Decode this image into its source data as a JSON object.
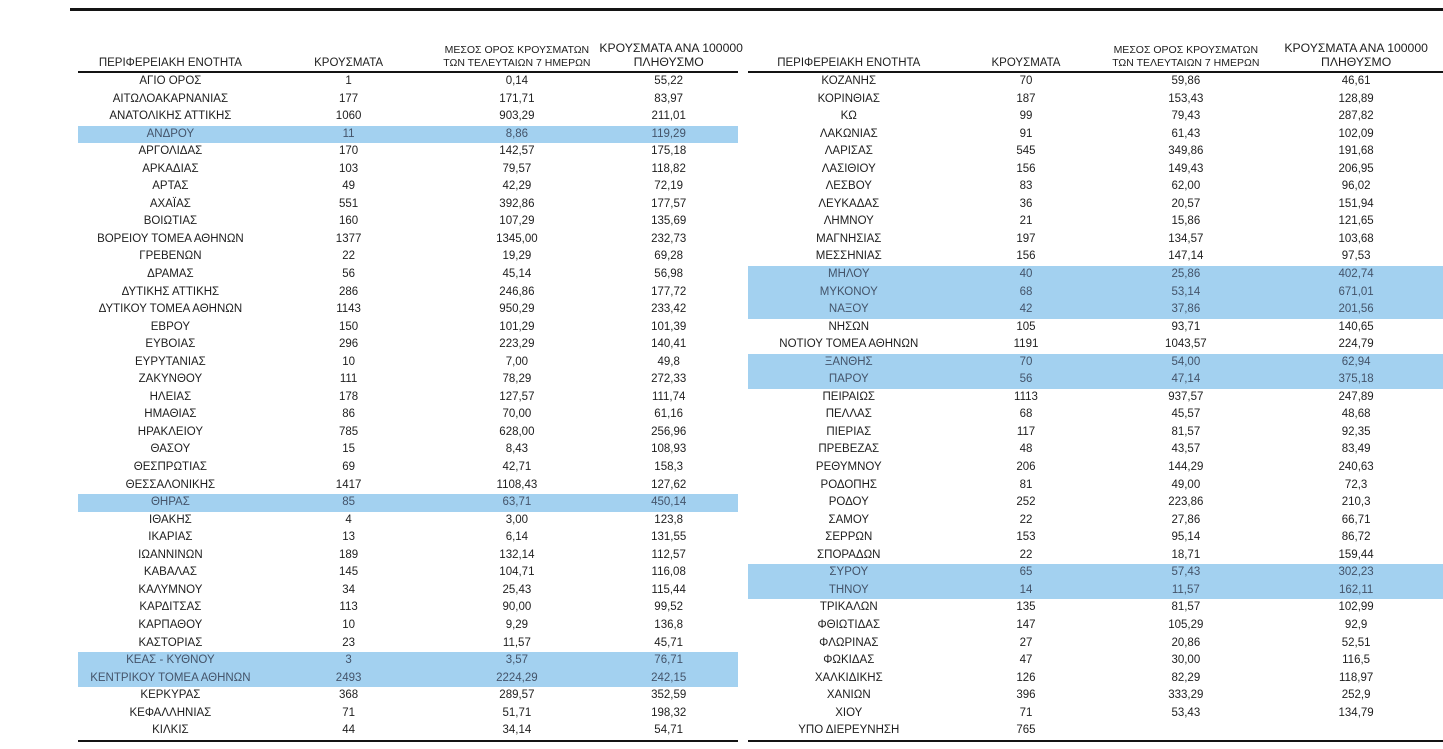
{
  "colors": {
    "highlight": "#a3d1f0",
    "highlight_text": "#44546a",
    "text": "#1e1e1e",
    "rule": "#141414"
  },
  "columns": {
    "region": "ΠΕΡΙΦΕΡΕΙΑΚΗ ΕΝΟΤΗΤΑ",
    "cases": "ΚΡΟΥΣΜΑΤΑ",
    "avg7_line1": "ΜΕΣΟΣ ΟΡΟΣ ΚΡΟΥΣΜΑΤΩΝ",
    "avg7_line2": "ΤΩΝ ΤΕΛΕΥΤΑΙΩΝ 7 ΗΜΕΡΩΝ",
    "per100k_line1": "ΚΡΟΥΣΜΑΤΑ ΑΝΑ 100000",
    "per100k_line2": "ΠΛΗΘΥΣΜΟ"
  },
  "tables": {
    "left": {
      "rows": [
        {
          "region": "ΑΓΙΟ ΟΡΟΣ",
          "cases": "1",
          "avg7": "0,14",
          "per100k": "55,22",
          "highlight": false
        },
        {
          "region": "ΑΙΤΩΛΟΑΚΑΡΝΑΝΙΑΣ",
          "cases": "177",
          "avg7": "171,71",
          "per100k": "83,97",
          "highlight": false
        },
        {
          "region": "ΑΝΑΤΟΛΙΚΗΣ ΑΤΤΙΚΗΣ",
          "cases": "1060",
          "avg7": "903,29",
          "per100k": "211,01",
          "highlight": false
        },
        {
          "region": "ΑΝΔΡΟΥ",
          "cases": "11",
          "avg7": "8,86",
          "per100k": "119,29",
          "highlight": true
        },
        {
          "region": "ΑΡΓΟΛΙΔΑΣ",
          "cases": "170",
          "avg7": "142,57",
          "per100k": "175,18",
          "highlight": false
        },
        {
          "region": "ΑΡΚΑΔΙΑΣ",
          "cases": "103",
          "avg7": "79,57",
          "per100k": "118,82",
          "highlight": false
        },
        {
          "region": "ΑΡΤΑΣ",
          "cases": "49",
          "avg7": "42,29",
          "per100k": "72,19",
          "highlight": false
        },
        {
          "region": "ΑΧΑΪΑΣ",
          "cases": "551",
          "avg7": "392,86",
          "per100k": "177,57",
          "highlight": false
        },
        {
          "region": "ΒΟΙΩΤΙΑΣ",
          "cases": "160",
          "avg7": "107,29",
          "per100k": "135,69",
          "highlight": false
        },
        {
          "region": "ΒΟΡΕΙΟΥ ΤΟΜΕΑ ΑΘΗΝΩΝ",
          "cases": "1377",
          "avg7": "1345,00",
          "per100k": "232,73",
          "highlight": false
        },
        {
          "region": "ΓΡΕΒΕΝΩΝ",
          "cases": "22",
          "avg7": "19,29",
          "per100k": "69,28",
          "highlight": false
        },
        {
          "region": "ΔΡΑΜΑΣ",
          "cases": "56",
          "avg7": "45,14",
          "per100k": "56,98",
          "highlight": false
        },
        {
          "region": "ΔΥΤΙΚΗΣ ΑΤΤΙΚΗΣ",
          "cases": "286",
          "avg7": "246,86",
          "per100k": "177,72",
          "highlight": false
        },
        {
          "region": "ΔΥΤΙΚΟΥ ΤΟΜΕΑ ΑΘΗΝΩΝ",
          "cases": "1143",
          "avg7": "950,29",
          "per100k": "233,42",
          "highlight": false
        },
        {
          "region": "ΕΒΡΟΥ",
          "cases": "150",
          "avg7": "101,29",
          "per100k": "101,39",
          "highlight": false
        },
        {
          "region": "ΕΥΒΟΙΑΣ",
          "cases": "296",
          "avg7": "223,29",
          "per100k": "140,41",
          "highlight": false
        },
        {
          "region": "ΕΥΡΥΤΑΝΙΑΣ",
          "cases": "10",
          "avg7": "7,00",
          "per100k": "49,8",
          "highlight": false
        },
        {
          "region": "ΖΑΚΥΝΘΟΥ",
          "cases": "111",
          "avg7": "78,29",
          "per100k": "272,33",
          "highlight": false
        },
        {
          "region": "ΗΛΕΙΑΣ",
          "cases": "178",
          "avg7": "127,57",
          "per100k": "111,74",
          "highlight": false
        },
        {
          "region": "ΗΜΑΘΙΑΣ",
          "cases": "86",
          "avg7": "70,00",
          "per100k": "61,16",
          "highlight": false
        },
        {
          "region": "ΗΡΑΚΛΕΙΟΥ",
          "cases": "785",
          "avg7": "628,00",
          "per100k": "256,96",
          "highlight": false
        },
        {
          "region": "ΘΑΣΟΥ",
          "cases": "15",
          "avg7": "8,43",
          "per100k": "108,93",
          "highlight": false
        },
        {
          "region": "ΘΕΣΠΡΩΤΙΑΣ",
          "cases": "69",
          "avg7": "42,71",
          "per100k": "158,3",
          "highlight": false
        },
        {
          "region": "ΘΕΣΣΑΛΟΝΙΚΗΣ",
          "cases": "1417",
          "avg7": "1108,43",
          "per100k": "127,62",
          "highlight": false
        },
        {
          "region": "ΘΗΡΑΣ",
          "cases": "85",
          "avg7": "63,71",
          "per100k": "450,14",
          "highlight": true
        },
        {
          "region": "ΙΘΑΚΗΣ",
          "cases": "4",
          "avg7": "3,00",
          "per100k": "123,8",
          "highlight": false
        },
        {
          "region": "ΙΚΑΡΙΑΣ",
          "cases": "13",
          "avg7": "6,14",
          "per100k": "131,55",
          "highlight": false
        },
        {
          "region": "ΙΩΑΝΝΙΝΩΝ",
          "cases": "189",
          "avg7": "132,14",
          "per100k": "112,57",
          "highlight": false
        },
        {
          "region": "ΚΑΒΑΛΑΣ",
          "cases": "145",
          "avg7": "104,71",
          "per100k": "116,08",
          "highlight": false
        },
        {
          "region": "ΚΑΛΥΜΝΟΥ",
          "cases": "34",
          "avg7": "25,43",
          "per100k": "115,44",
          "highlight": false
        },
        {
          "region": "ΚΑΡΔΙΤΣΑΣ",
          "cases": "113",
          "avg7": "90,00",
          "per100k": "99,52",
          "highlight": false
        },
        {
          "region": "ΚΑΡΠΑΘΟΥ",
          "cases": "10",
          "avg7": "9,29",
          "per100k": "136,8",
          "highlight": false
        },
        {
          "region": "ΚΑΣΤΟΡΙΑΣ",
          "cases": "23",
          "avg7": "11,57",
          "per100k": "45,71",
          "highlight": false
        },
        {
          "region": "ΚΕΑΣ - ΚΥΘΝΟΥ",
          "cases": "3",
          "avg7": "3,57",
          "per100k": "76,71",
          "highlight": true
        },
        {
          "region": "ΚΕΝΤΡΙΚΟΥ ΤΟΜΕΑ ΑΘΗΝΩΝ",
          "cases": "2493",
          "avg7": "2224,29",
          "per100k": "242,15",
          "highlight": true
        },
        {
          "region": "ΚΕΡΚΥΡΑΣ",
          "cases": "368",
          "avg7": "289,57",
          "per100k": "352,59",
          "highlight": false
        },
        {
          "region": "ΚΕΦΑΛΛΗΝΙΑΣ",
          "cases": "71",
          "avg7": "51,71",
          "per100k": "198,32",
          "highlight": false
        },
        {
          "region": "ΚΙΛΚΙΣ",
          "cases": "44",
          "avg7": "34,14",
          "per100k": "54,71",
          "highlight": false
        }
      ]
    },
    "right": {
      "rows": [
        {
          "region": "ΚΟΖΑΝΗΣ",
          "cases": "70",
          "avg7": "59,86",
          "per100k": "46,61",
          "highlight": false
        },
        {
          "region": "ΚΟΡΙΝΘΙΑΣ",
          "cases": "187",
          "avg7": "153,43",
          "per100k": "128,89",
          "highlight": false
        },
        {
          "region": "ΚΩ",
          "cases": "99",
          "avg7": "79,43",
          "per100k": "287,82",
          "highlight": false
        },
        {
          "region": "ΛΑΚΩΝΙΑΣ",
          "cases": "91",
          "avg7": "61,43",
          "per100k": "102,09",
          "highlight": false
        },
        {
          "region": "ΛΑΡΙΣΑΣ",
          "cases": "545",
          "avg7": "349,86",
          "per100k": "191,68",
          "highlight": false
        },
        {
          "region": "ΛΑΣΙΘΙΟΥ",
          "cases": "156",
          "avg7": "149,43",
          "per100k": "206,95",
          "highlight": false
        },
        {
          "region": "ΛΕΣΒΟΥ",
          "cases": "83",
          "avg7": "62,00",
          "per100k": "96,02",
          "highlight": false
        },
        {
          "region": "ΛΕΥΚΑΔΑΣ",
          "cases": "36",
          "avg7": "20,57",
          "per100k": "151,94",
          "highlight": false
        },
        {
          "region": "ΛΗΜΝΟΥ",
          "cases": "21",
          "avg7": "15,86",
          "per100k": "121,65",
          "highlight": false
        },
        {
          "region": "ΜΑΓΝΗΣΙΑΣ",
          "cases": "197",
          "avg7": "134,57",
          "per100k": "103,68",
          "highlight": false
        },
        {
          "region": "ΜΕΣΣΗΝΙΑΣ",
          "cases": "156",
          "avg7": "147,14",
          "per100k": "97,53",
          "highlight": false
        },
        {
          "region": "ΜΗΛΟΥ",
          "cases": "40",
          "avg7": "25,86",
          "per100k": "402,74",
          "highlight": true
        },
        {
          "region": "ΜΥΚΟΝΟΥ",
          "cases": "68",
          "avg7": "53,14",
          "per100k": "671,01",
          "highlight": true
        },
        {
          "region": "ΝΑΞΟΥ",
          "cases": "42",
          "avg7": "37,86",
          "per100k": "201,56",
          "highlight": true
        },
        {
          "region": "ΝΗΣΩΝ",
          "cases": "105",
          "avg7": "93,71",
          "per100k": "140,65",
          "highlight": false
        },
        {
          "region": "ΝΟΤΙΟΥ ΤΟΜΕΑ ΑΘΗΝΩΝ",
          "cases": "1191",
          "avg7": "1043,57",
          "per100k": "224,79",
          "highlight": false
        },
        {
          "region": "ΞΑΝΘΗΣ",
          "cases": "70",
          "avg7": "54,00",
          "per100k": "62,94",
          "highlight": true
        },
        {
          "region": "ΠΑΡΟΥ",
          "cases": "56",
          "avg7": "47,14",
          "per100k": "375,18",
          "highlight": true
        },
        {
          "region": "ΠΕΙΡΑΙΩΣ",
          "cases": "1113",
          "avg7": "937,57",
          "per100k": "247,89",
          "highlight": false
        },
        {
          "region": "ΠΕΛΛΑΣ",
          "cases": "68",
          "avg7": "45,57",
          "per100k": "48,68",
          "highlight": false
        },
        {
          "region": "ΠΙΕΡΙΑΣ",
          "cases": "117",
          "avg7": "81,57",
          "per100k": "92,35",
          "highlight": false
        },
        {
          "region": "ΠΡΕΒΕΖΑΣ",
          "cases": "48",
          "avg7": "43,57",
          "per100k": "83,49",
          "highlight": false
        },
        {
          "region": "ΡΕΘΥΜΝΟΥ",
          "cases": "206",
          "avg7": "144,29",
          "per100k": "240,63",
          "highlight": false
        },
        {
          "region": "ΡΟΔΟΠΗΣ",
          "cases": "81",
          "avg7": "49,00",
          "per100k": "72,3",
          "highlight": false
        },
        {
          "region": "ΡΟΔΟΥ",
          "cases": "252",
          "avg7": "223,86",
          "per100k": "210,3",
          "highlight": false
        },
        {
          "region": "ΣΑΜΟΥ",
          "cases": "22",
          "avg7": "27,86",
          "per100k": "66,71",
          "highlight": false
        },
        {
          "region": "ΣΕΡΡΩΝ",
          "cases": "153",
          "avg7": "95,14",
          "per100k": "86,72",
          "highlight": false
        },
        {
          "region": "ΣΠΟΡΑΔΩΝ",
          "cases": "22",
          "avg7": "18,71",
          "per100k": "159,44",
          "highlight": false
        },
        {
          "region": "ΣΥΡΟΥ",
          "cases": "65",
          "avg7": "57,43",
          "per100k": "302,23",
          "highlight": true
        },
        {
          "region": "ΤΗΝΟΥ",
          "cases": "14",
          "avg7": "11,57",
          "per100k": "162,11",
          "highlight": true
        },
        {
          "region": "ΤΡΙΚΑΛΩΝ",
          "cases": "135",
          "avg7": "81,57",
          "per100k": "102,99",
          "highlight": false
        },
        {
          "region": "ΦΘΙΩΤΙΔΑΣ",
          "cases": "147",
          "avg7": "105,29",
          "per100k": "92,9",
          "highlight": false
        },
        {
          "region": "ΦΛΩΡΙΝΑΣ",
          "cases": "27",
          "avg7": "20,86",
          "per100k": "52,51",
          "highlight": false
        },
        {
          "region": "ΦΩΚΙΔΑΣ",
          "cases": "47",
          "avg7": "30,00",
          "per100k": "116,5",
          "highlight": false
        },
        {
          "region": "ΧΑΛΚΙΔΙΚΗΣ",
          "cases": "126",
          "avg7": "82,29",
          "per100k": "118,97",
          "highlight": false
        },
        {
          "region": "ΧΑΝΙΩΝ",
          "cases": "396",
          "avg7": "333,29",
          "per100k": "252,9",
          "highlight": false
        },
        {
          "region": "ΧΙΟΥ",
          "cases": "71",
          "avg7": "53,43",
          "per100k": "134,79",
          "highlight": false
        },
        {
          "region": "ΥΠΟ ΔΙΕΡΕΥΝΗΣΗ",
          "cases": "765",
          "avg7": "",
          "per100k": "",
          "highlight": false
        }
      ]
    }
  }
}
